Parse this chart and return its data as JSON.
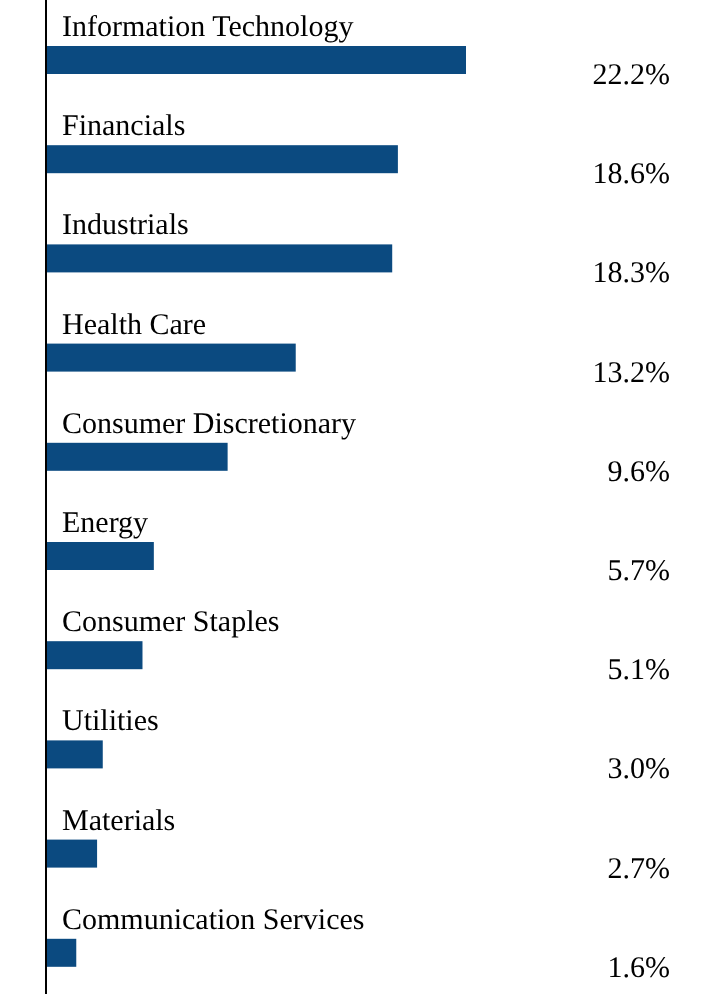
{
  "chart_data": {
    "type": "bar",
    "orientation": "horizontal",
    "categories": [
      "Information Technology",
      "Financials",
      "Industrials",
      "Health Care",
      "Consumer Discretionary",
      "Energy",
      "Consumer Staples",
      "Utilities",
      "Materials",
      "Communication Services"
    ],
    "values": [
      22.2,
      18.6,
      18.3,
      13.2,
      9.6,
      5.7,
      5.1,
      3.0,
      2.7,
      1.6
    ],
    "value_labels": [
      "22.2%",
      "18.6%",
      "18.3%",
      "13.2%",
      "9.6%",
      "5.7%",
      "5.1%",
      "3.0%",
      "2.7%",
      "1.6%"
    ],
    "color": "#0b4a80"
  }
}
